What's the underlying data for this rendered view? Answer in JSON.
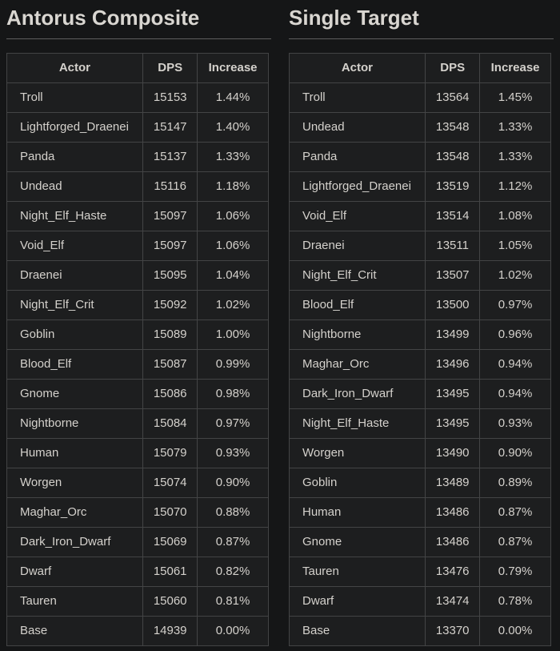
{
  "theme": {
    "page_background": "#151617",
    "table_background": "#1d1e1f",
    "border_color": "#434445",
    "divider_color": "#5e5e5e",
    "text_color": "#d4d1cc",
    "title_color": "#d9d6d1"
  },
  "tables": [
    {
      "title": "Antorus Composite",
      "columns": [
        "Actor",
        "DPS",
        "Increase"
      ],
      "rows": [
        [
          "Troll",
          "15153",
          "1.44%"
        ],
        [
          "Lightforged_Draenei",
          "15147",
          "1.40%"
        ],
        [
          "Panda",
          "15137",
          "1.33%"
        ],
        [
          "Undead",
          "15116",
          "1.18%"
        ],
        [
          "Night_Elf_Haste",
          "15097",
          "1.06%"
        ],
        [
          "Void_Elf",
          "15097",
          "1.06%"
        ],
        [
          "Draenei",
          "15095",
          "1.04%"
        ],
        [
          "Night_Elf_Crit",
          "15092",
          "1.02%"
        ],
        [
          "Goblin",
          "15089",
          "1.00%"
        ],
        [
          "Blood_Elf",
          "15087",
          "0.99%"
        ],
        [
          "Gnome",
          "15086",
          "0.98%"
        ],
        [
          "Nightborne",
          "15084",
          "0.97%"
        ],
        [
          "Human",
          "15079",
          "0.93%"
        ],
        [
          "Worgen",
          "15074",
          "0.90%"
        ],
        [
          "Maghar_Orc",
          "15070",
          "0.88%"
        ],
        [
          "Dark_Iron_Dwarf",
          "15069",
          "0.87%"
        ],
        [
          "Dwarf",
          "15061",
          "0.82%"
        ],
        [
          "Tauren",
          "15060",
          "0.81%"
        ],
        [
          "Base",
          "14939",
          "0.00%"
        ]
      ]
    },
    {
      "title": "Single Target",
      "columns": [
        "Actor",
        "DPS",
        "Increase"
      ],
      "rows": [
        [
          "Troll",
          "13564",
          "1.45%"
        ],
        [
          "Undead",
          "13548",
          "1.33%"
        ],
        [
          "Panda",
          "13548",
          "1.33%"
        ],
        [
          "Lightforged_Draenei",
          "13519",
          "1.12%"
        ],
        [
          "Void_Elf",
          "13514",
          "1.08%"
        ],
        [
          "Draenei",
          "13511",
          "1.05%"
        ],
        [
          "Night_Elf_Crit",
          "13507",
          "1.02%"
        ],
        [
          "Blood_Elf",
          "13500",
          "0.97%"
        ],
        [
          "Nightborne",
          "13499",
          "0.96%"
        ],
        [
          "Maghar_Orc",
          "13496",
          "0.94%"
        ],
        [
          "Dark_Iron_Dwarf",
          "13495",
          "0.94%"
        ],
        [
          "Night_Elf_Haste",
          "13495",
          "0.93%"
        ],
        [
          "Worgen",
          "13490",
          "0.90%"
        ],
        [
          "Goblin",
          "13489",
          "0.89%"
        ],
        [
          "Human",
          "13486",
          "0.87%"
        ],
        [
          "Gnome",
          "13486",
          "0.87%"
        ],
        [
          "Tauren",
          "13476",
          "0.79%"
        ],
        [
          "Dwarf",
          "13474",
          "0.78%"
        ],
        [
          "Base",
          "13370",
          "0.00%"
        ]
      ]
    }
  ]
}
